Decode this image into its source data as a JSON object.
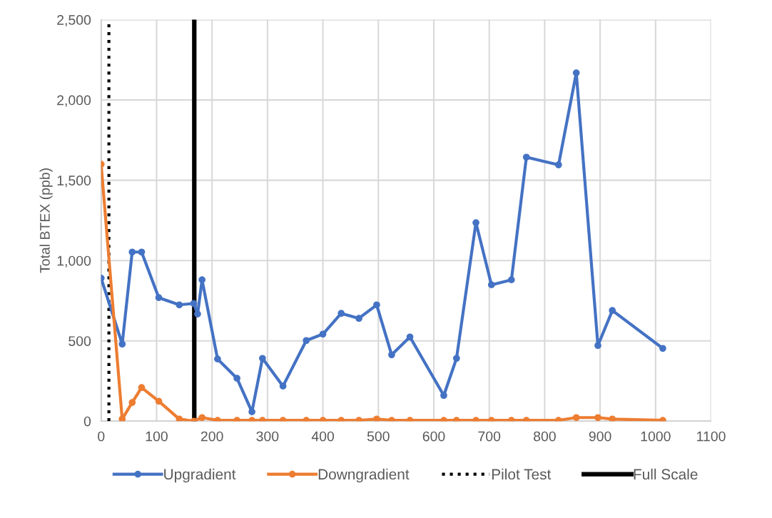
{
  "chart_data": {
    "type": "line",
    "ylabel": "Total BTEX (ppb)",
    "xlim": [
      0,
      1100
    ],
    "xticks": [
      0,
      100,
      200,
      300,
      400,
      500,
      600,
      700,
      800,
      900,
      1000,
      1100
    ],
    "ylim": [
      0,
      2500
    ],
    "yticks": [
      0,
      500,
      {
        "value": 1000,
        "label": "1,000"
      },
      {
        "value": 1500,
        "label": "1,500"
      },
      {
        "value": 2000,
        "label": "2,000"
      },
      {
        "value": 2500,
        "label": "2,500"
      }
    ],
    "grid": true,
    "legend": "bottom",
    "marker": "circle",
    "line_style": "solid",
    "series": [
      {
        "name": "Upgradient",
        "color": "#4472c4",
        "x": [
          0,
          38,
          56,
          73,
          104,
          141,
          167,
          174,
          182,
          210,
          245,
          272,
          291,
          328,
          370,
          400,
          433,
          465,
          497,
          524,
          557,
          618,
          641,
          676,
          704,
          740,
          767,
          825,
          857,
          896,
          922,
          1013
        ],
        "values": [
          890,
          480,
          1053,
          1053,
          769,
          724,
          733,
          667,
          880,
          387,
          267,
          58,
          391,
          218,
          502,
          542,
          671,
          640,
          724,
          413,
          524,
          160,
          391,
          1236,
          849,
          880,
          1644,
          1596,
          2169,
          471,
          689,
          453
        ]
      },
      {
        "name": "Downgradient",
        "color": "#ed7d31",
        "x": [
          0,
          38,
          56,
          73,
          104,
          141,
          167,
          182,
          210,
          245,
          272,
          291,
          328,
          370,
          400,
          433,
          465,
          497,
          524,
          557,
          618,
          641,
          676,
          704,
          740,
          767,
          825,
          857,
          896,
          922,
          1013
        ],
        "values": [
          1600,
          13,
          116,
          209,
          124,
          13,
          0,
          22,
          5,
          5,
          5,
          5,
          5,
          5,
          5,
          5,
          5,
          13,
          5,
          5,
          5,
          5,
          5,
          5,
          5,
          5,
          5,
          22,
          22,
          13,
          5
        ]
      }
    ],
    "ref_lines": [
      {
        "axis": "x",
        "value": 14,
        "label": "Pilot Test",
        "color": "#000000",
        "line_style": "dotted"
      },
      {
        "axis": "x",
        "value": 168,
        "label": "Full Scale",
        "color": "#000000",
        "line_style": "solid"
      }
    ]
  }
}
